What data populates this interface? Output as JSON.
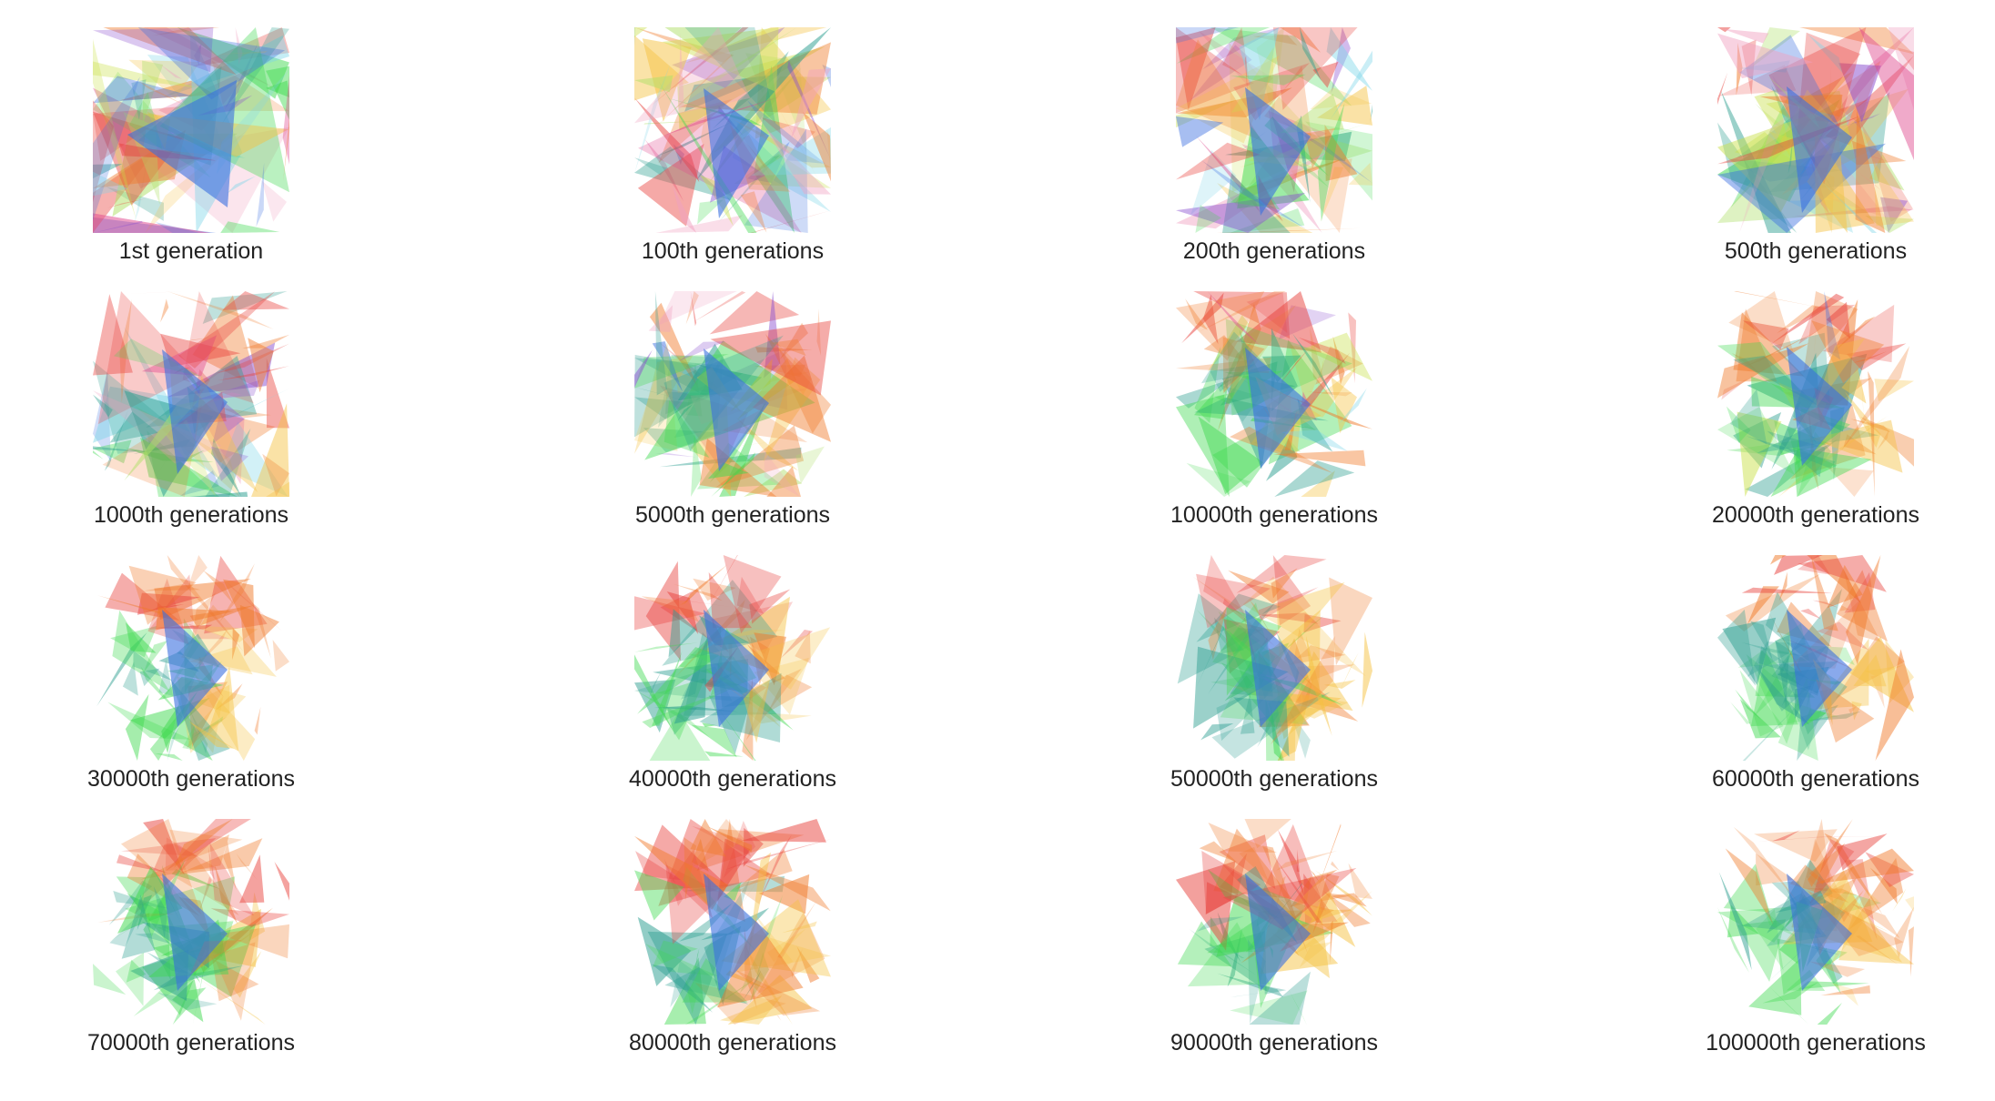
{
  "panels": [
    {
      "caption": "1st generation",
      "stage": 0
    },
    {
      "caption": "100th generations",
      "stage": 1
    },
    {
      "caption": "200th generations",
      "stage": 2
    },
    {
      "caption": "500th generations",
      "stage": 3
    },
    {
      "caption": "1000th generations",
      "stage": 4
    },
    {
      "caption": "5000th generations",
      "stage": 5
    },
    {
      "caption": "10000th generations",
      "stage": 6
    },
    {
      "caption": "20000th generations",
      "stage": 7
    },
    {
      "caption": "30000th generations",
      "stage": 8
    },
    {
      "caption": "40000th generations",
      "stage": 8
    },
    {
      "caption": "50000th generations",
      "stage": 8
    },
    {
      "caption": "60000th generations",
      "stage": 8
    },
    {
      "caption": "70000th generations",
      "stage": 8
    },
    {
      "caption": "80000th generations",
      "stage": 8
    },
    {
      "caption": "90000th generations",
      "stage": 8
    },
    {
      "caption": "100000th generations",
      "stage": 8
    }
  ],
  "palette": [
    "#e8413c",
    "#f07a2a",
    "#f5c242",
    "#c9e04a",
    "#3fd94f",
    "#2a9d8f",
    "#3b6fe0",
    "#8a4fd0",
    "#e04a8f",
    "#7fd6e8",
    "#f0a0c0",
    "#b0e06a"
  ],
  "background": "#ffffff"
}
